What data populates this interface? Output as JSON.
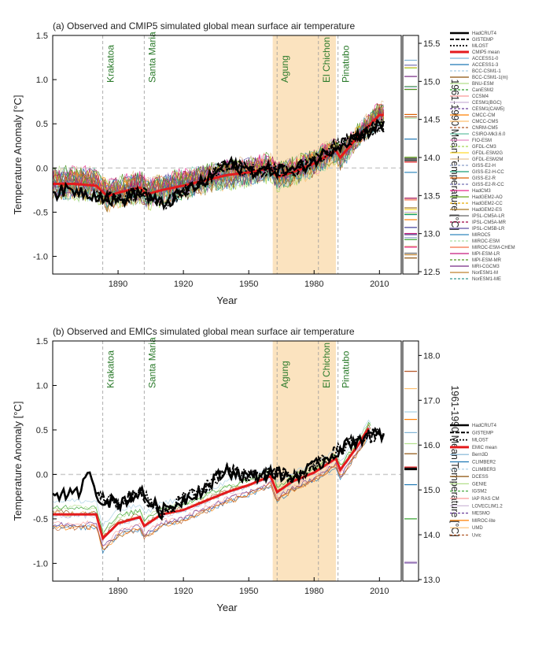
{
  "panels": [
    {
      "id": "a",
      "title": "(a) Observed and CMIP5 simulated global mean surface air temperature",
      "xlabel": "Year",
      "ylabel": "Temperature Anomaly [°C]",
      "y2label": "1961-1990 Mean Temperature [°C]",
      "xlim": [
        1860,
        2020
      ],
      "ylim": [
        -1.2,
        1.5
      ],
      "xticks": [
        1890,
        1920,
        1950,
        1980,
        2010
      ],
      "yticks": [
        "-1.0",
        "-0.5",
        "0.0",
        "0.5",
        "1.0",
        "1.5"
      ],
      "y2ticks": [
        "12.5",
        "13.0",
        "13.5",
        "14.0",
        "14.5",
        "15.0",
        "15.5"
      ],
      "y2lim": [
        12.5,
        15.5
      ],
      "volcanoes": [
        {
          "name": "Krakatoa",
          "year": 1883
        },
        {
          "name": "Santa Maria",
          "year": 1902
        },
        {
          "name": "Agung",
          "year": 1963
        },
        {
          "name": "El Chichon",
          "year": 1982
        },
        {
          "name": "Pinatubo",
          "year": 1991
        }
      ],
      "shade": [
        1961,
        1990
      ],
      "mean_color": "#e41a1c",
      "obs_mean_anomaly": [
        [
          1860,
          -0.28
        ],
        [
          1870,
          -0.25
        ],
        [
          1880,
          -0.3
        ],
        [
          1890,
          -0.38
        ],
        [
          1900,
          -0.27
        ],
        [
          1910,
          -0.42
        ],
        [
          1920,
          -0.28
        ],
        [
          1930,
          -0.15
        ],
        [
          1940,
          0.05
        ],
        [
          1950,
          -0.03
        ],
        [
          1960,
          -0.02
        ],
        [
          1970,
          -0.03
        ],
        [
          1980,
          0.08
        ],
        [
          1990,
          0.25
        ],
        [
          2000,
          0.36
        ],
        [
          2010,
          0.48
        ]
      ],
      "model_mean_anomaly": [
        [
          1860,
          -0.18
        ],
        [
          1870,
          -0.18
        ],
        [
          1880,
          -0.2
        ],
        [
          1885,
          -0.32
        ],
        [
          1890,
          -0.28
        ],
        [
          1900,
          -0.22
        ],
        [
          1903,
          -0.3
        ],
        [
          1910,
          -0.25
        ],
        [
          1920,
          -0.2
        ],
        [
          1930,
          -0.14
        ],
        [
          1940,
          -0.08
        ],
        [
          1950,
          -0.05
        ],
        [
          1960,
          0.0
        ],
        [
          1963,
          -0.1
        ],
        [
          1970,
          -0.05
        ],
        [
          1980,
          0.05
        ],
        [
          1990,
          0.2
        ],
        [
          1992,
          0.12
        ],
        [
          2000,
          0.35
        ],
        [
          2010,
          0.6
        ]
      ],
      "legend": [
        "HadCRUT4",
        "GISTEMP",
        "MLOST",
        "CMIP5 mean",
        "ACCESS1-0",
        "ACCESS1-3",
        "BCC-CSM1-1",
        "BCC-CSM1-1(m)",
        "BNU-ESM",
        "CanESM2",
        "CCSM4",
        "CESM1(BGC)",
        "CESM1(CAM5)",
        "CMCC-CM",
        "CMCC-CMS",
        "CNRM-CM5",
        "CSIRO-Mk3.6.0",
        "FIO-ESM",
        "GFDL-CM3",
        "GFDL-ESM2G",
        "GFDL-ESM2M",
        "GISS-E2-H",
        "GISS-E2-H-CC",
        "GISS-E2-R",
        "GISS-E2-R-CC",
        "HadCM3",
        "HadGEM2-AO",
        "HadGEM2-CC",
        "HadGEM2-ES",
        "IPSL-CM5A-LR",
        "IPSL-CM5A-MR",
        "IPSL-CM5B-LR",
        "MIROC5",
        "MIROC-ESM",
        "MIROC-ESM-CHEM",
        "MPI-ESM-LR",
        "MPI-ESM-MR",
        "MRI-CGCM3",
        "NorESM1-M",
        "NorESM1-ME"
      ]
    },
    {
      "id": "b",
      "title": "(b) Observed and EMICs simulated global mean surface air temperature",
      "xlabel": "Year",
      "ylabel": "Temperature Anomaly [°C]",
      "y2label": "1961-1990 Mean Temperature [°C]",
      "xlim": [
        1860,
        2020
      ],
      "ylim": [
        -1.2,
        1.5
      ],
      "xticks": [
        1890,
        1920,
        1950,
        1980,
        2010
      ],
      "yticks": [
        "-1.0",
        "-0.5",
        "0.0",
        "0.5",
        "1.0",
        "1.5"
      ],
      "y2ticks": [
        "13.0",
        "14.0",
        "15.0",
        "16.0",
        "17.0",
        "18.0"
      ],
      "y2lim": [
        13.0,
        18.2
      ],
      "volcanoes": [
        {
          "name": "Krakatoa",
          "year": 1883
        },
        {
          "name": "Santa Maria",
          "year": 1902
        },
        {
          "name": "Agung",
          "year": 1963
        },
        {
          "name": "El Chichon",
          "year": 1982
        },
        {
          "name": "Pinatubo",
          "year": 1991
        }
      ],
      "shade": [
        1961,
        1990
      ],
      "mean_color": "#e41a1c",
      "obs_mean_anomaly": [
        [
          1860,
          -0.2
        ],
        [
          1870,
          -0.25
        ],
        [
          1878,
          0.02
        ],
        [
          1880,
          -0.25
        ],
        [
          1890,
          -0.33
        ],
        [
          1900,
          -0.2
        ],
        [
          1910,
          -0.42
        ],
        [
          1920,
          -0.28
        ],
        [
          1930,
          -0.15
        ],
        [
          1940,
          0.05
        ],
        [
          1950,
          -0.03
        ],
        [
          1960,
          0.02
        ],
        [
          1970,
          -0.03
        ],
        [
          1980,
          0.08
        ],
        [
          1990,
          0.25
        ],
        [
          2000,
          0.4
        ],
        [
          2010,
          0.45
        ]
      ],
      "model_mean_anomaly": [
        [
          1860,
          -0.45
        ],
        [
          1880,
          -0.45
        ],
        [
          1883,
          -0.72
        ],
        [
          1890,
          -0.55
        ],
        [
          1900,
          -0.48
        ],
        [
          1902,
          -0.58
        ],
        [
          1910,
          -0.45
        ],
        [
          1920,
          -0.4
        ],
        [
          1930,
          -0.3
        ],
        [
          1940,
          -0.2
        ],
        [
          1950,
          -0.12
        ],
        [
          1960,
          -0.02
        ],
        [
          1963,
          -0.2
        ],
        [
          1970,
          -0.08
        ],
        [
          1980,
          0.02
        ],
        [
          1990,
          0.18
        ],
        [
          1992,
          0.05
        ],
        [
          2000,
          0.32
        ],
        [
          2005,
          0.52
        ]
      ],
      "legend": [
        "HadCRUT4",
        "GISTEMP",
        "MLOST",
        "EMIC mean",
        "Bern3D",
        "CLIMBER2",
        "CLIMBER3",
        "DCESS",
        "GENIE",
        "IGSM2",
        "IAP RAS CM",
        "LOVECLIM1.2",
        "MESMO",
        "MIROC-lite",
        "UMD",
        "Uvic"
      ]
    }
  ],
  "colors": [
    "#7fb3d5",
    "#1f78b4",
    "#a6cee3",
    "#8c510a",
    "#b2df8a",
    "#33a02c",
    "#fb9a99",
    "#cab2d6",
    "#6a3d9a",
    "#ff7f00",
    "#fdbf6f",
    "#b15928",
    "#66c2a5",
    "#e78ac3",
    "#a6d854",
    "#ffd92f",
    "#e5c494",
    "#8da0cb",
    "#1b9e77",
    "#d95f02",
    "#7570b3",
    "#e7298a",
    "#66a61e",
    "#e6ab02",
    "#a6761d",
    "#666666",
    "#9e0142",
    "#5e4fa2",
    "#3288bd",
    "#abdda4",
    "#f46d43",
    "#c51b7d",
    "#4d9221",
    "#762a83",
    "#bf812d",
    "#35978f",
    "#dfc27d",
    "#01665e",
    "#8e0152",
    "#fee08b"
  ]
}
